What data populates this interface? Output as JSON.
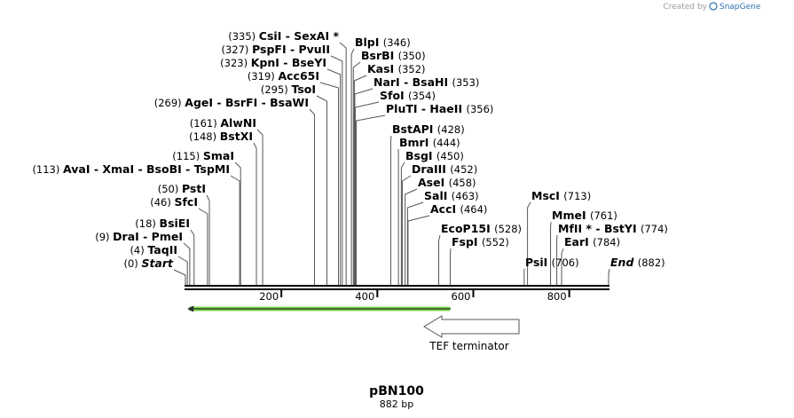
{
  "header": {
    "credit_prefix": "Created by",
    "brand": "SnapGene"
  },
  "plasmid": {
    "name": "pBN100",
    "length_label": "882 bp",
    "length": 882
  },
  "ruler": {
    "ticks": [
      200,
      400,
      600,
      800
    ],
    "tick_labels": [
      "200",
      "400",
      "600",
      "800"
    ]
  },
  "features": [
    {
      "name": "TEF terminator",
      "start": 4,
      "end": 555,
      "direction": "reverse",
      "highlight_color": "#7bd64b"
    }
  ],
  "sites": [
    {
      "name": "Start",
      "pos": 0,
      "pos_label": "(0)",
      "italic": true
    },
    {
      "name": "TaqII",
      "pos": 4,
      "pos_label": "(4)"
    },
    {
      "name": "DraI  -  PmeI",
      "pos": 9,
      "pos_label": "(9)"
    },
    {
      "name": "BsiEI",
      "pos": 18,
      "pos_label": "(18)"
    },
    {
      "name": "SfcI",
      "pos": 46,
      "pos_label": "(46)"
    },
    {
      "name": "PstI",
      "pos": 50,
      "pos_label": "(50)"
    },
    {
      "name": "AvaI  -  XmaI  -  BsoBI  -  TspMI",
      "pos": 113,
      "pos_label": "(113)"
    },
    {
      "name": "SmaI",
      "pos": 115,
      "pos_label": "(115)"
    },
    {
      "name": "BstXI",
      "pos": 148,
      "pos_label": "(148)"
    },
    {
      "name": "AlwNI",
      "pos": 161,
      "pos_label": "(161)"
    },
    {
      "name": "AgeI  -  BsrFI  -  BsaWI",
      "pos": 269,
      "pos_label": "(269)"
    },
    {
      "name": "TsoI",
      "pos": 295,
      "pos_label": "(295)"
    },
    {
      "name": "Acc65I",
      "pos": 319,
      "pos_label": "(319)"
    },
    {
      "name": "KpnI  -  BseYI",
      "pos": 323,
      "pos_label": "(323)"
    },
    {
      "name": "PspFI  -  PvuII",
      "pos": 327,
      "pos_label": "(327)"
    },
    {
      "name": "CsiI  -  SexAI *",
      "pos": 335,
      "pos_label": "(335)"
    },
    {
      "name": "BlpI",
      "pos": 346,
      "pos_label": "(346)"
    },
    {
      "name": "BsrBI",
      "pos": 350,
      "pos_label": "(350)"
    },
    {
      "name": "KasI",
      "pos": 352,
      "pos_label": "(352)"
    },
    {
      "name": "NarI  -  BsaHI",
      "pos": 353,
      "pos_label": "(353)"
    },
    {
      "name": "SfoI",
      "pos": 354,
      "pos_label": "(354)"
    },
    {
      "name": "PluTI  -  HaeII",
      "pos": 356,
      "pos_label": "(356)"
    },
    {
      "name": "BstAPI",
      "pos": 428,
      "pos_label": "(428)"
    },
    {
      "name": "BmrI",
      "pos": 444,
      "pos_label": "(444)"
    },
    {
      "name": "BsgI",
      "pos": 450,
      "pos_label": "(450)"
    },
    {
      "name": "DraIII",
      "pos": 452,
      "pos_label": "(452)"
    },
    {
      "name": "AseI",
      "pos": 458,
      "pos_label": "(458)"
    },
    {
      "name": "SalI",
      "pos": 463,
      "pos_label": "(463)"
    },
    {
      "name": "AccI",
      "pos": 464,
      "pos_label": "(464)"
    },
    {
      "name": "EcoP15I",
      "pos": 528,
      "pos_label": "(528)"
    },
    {
      "name": "FspI",
      "pos": 552,
      "pos_label": "(552)"
    },
    {
      "name": "PsiI",
      "pos": 706,
      "pos_label": "(706)"
    },
    {
      "name": "MscI",
      "pos": 713,
      "pos_label": "(713)"
    },
    {
      "name": "MmeI",
      "pos": 761,
      "pos_label": "(761)"
    },
    {
      "name": "MfII *  -  BstYI",
      "pos": 774,
      "pos_label": "(774)"
    },
    {
      "name": "EarI",
      "pos": 784,
      "pos_label": "(784)"
    },
    {
      "name": "End",
      "pos": 882,
      "pos_label": "(882)",
      "italic": true
    }
  ]
}
